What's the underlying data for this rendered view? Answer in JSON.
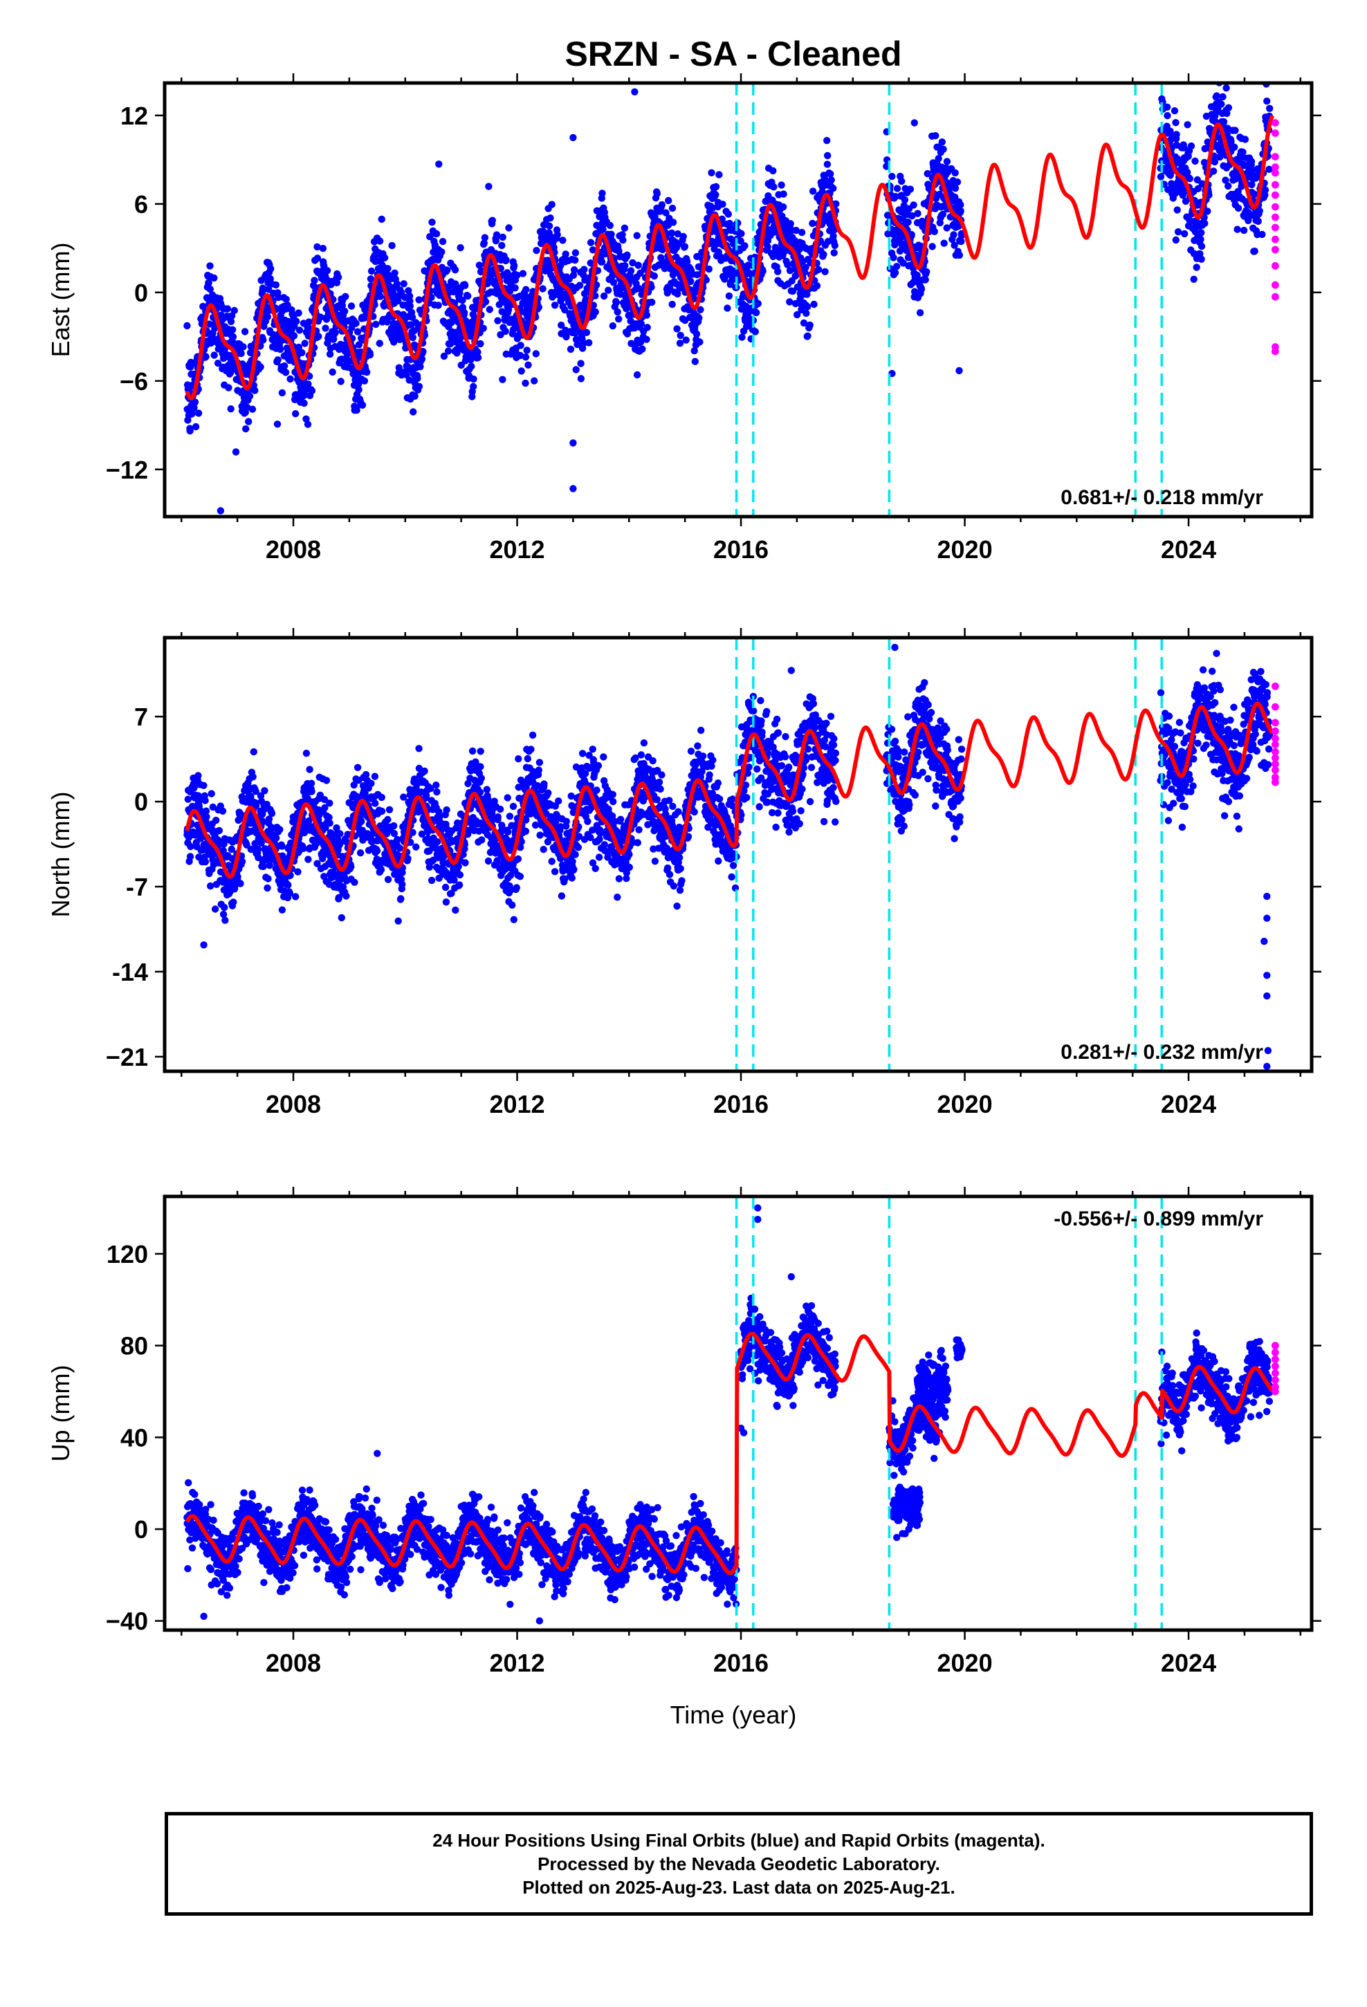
{
  "title": "SRZN  - SA - Cleaned",
  "xlabel": "Time (year)",
  "colors": {
    "final": "#0000ff",
    "rapid": "#ff00ff",
    "model": "#ff0000",
    "offset": "#00e5ee",
    "frame": "#000000"
  },
  "chart_data": [
    {
      "type": "scatter",
      "name": "east",
      "ylabel": "East (mm)",
      "xlim": [
        2005.7,
        2026.2
      ],
      "ylim": [
        -15.2,
        14.2
      ],
      "yticks": [
        12,
        6,
        0,
        -6,
        -12
      ],
      "ytick_labels": [
        "12",
        "6",
        "0",
        "−6",
        "−12"
      ],
      "xticks": [
        2008,
        2012,
        2016,
        2020,
        2024
      ],
      "xtick_labels": [
        "2008",
        "2012",
        "2016",
        "2020",
        "2024"
      ],
      "rate_label": "0.681+/- 0.218 mm/yr",
      "rate_pos": "bottom-right",
      "offsets": [
        2015.92,
        2016.22,
        2018.65,
        2023.05,
        2023.52
      ],
      "data_segments": [
        [
          2006.1,
          2017.7
        ],
        [
          2018.6,
          2019.95
        ],
        [
          2023.5,
          2025.45
        ]
      ],
      "trend": {
        "t0": 2006.1,
        "y0": -4.2,
        "rate": 0.681
      },
      "breaks": [
        [
          2015.92,
          0.0
        ],
        [
          2016.22,
          0.0
        ],
        [
          2018.65,
          0.0
        ],
        [
          2023.05,
          0.0
        ],
        [
          2023.52,
          0.0
        ]
      ],
      "annual": 2.5,
      "semiannual": 1.0,
      "phase": 0.35,
      "noise": 1.6,
      "rapid": {
        "t": 2025.55,
        "values": [
          11.5,
          10.8,
          9.2,
          8.5,
          7.3,
          6.6,
          5.8,
          5.1,
          4.4,
          3.6,
          2.9,
          1.8,
          0.5,
          -0.3,
          -3.7,
          -4.0,
          8.1
        ]
      },
      "outliers": [
        [
          2014.1,
          13.6
        ],
        [
          2013.0,
          10.5
        ],
        [
          2010.6,
          8.7
        ],
        [
          2019.1,
          11.5
        ],
        [
          2006.7,
          -14.8
        ],
        [
          2013.0,
          -13.3
        ],
        [
          2013.0,
          -10.2
        ],
        [
          2019.9,
          -5.3
        ],
        [
          2018.7,
          -5.5
        ]
      ]
    },
    {
      "type": "scatter",
      "name": "north",
      "ylabel": "North (mm)",
      "xlim": [
        2005.7,
        2026.2
      ],
      "ylim": [
        -22.2,
        13.5
      ],
      "yticks": [
        7,
        0,
        -7,
        -14,
        -21
      ],
      "ytick_labels": [
        "7",
        "0",
        "-7",
        "-14",
        "−21"
      ],
      "xticks": [
        2008,
        2012,
        2016,
        2020,
        2024
      ],
      "xtick_labels": [
        "2008",
        "2012",
        "2016",
        "2020",
        "2024"
      ],
      "rate_label": "0.281+/- 0.232 mm/yr",
      "rate_pos": "bottom-right",
      "offsets": [
        2015.92,
        2016.22,
        2018.65,
        2023.05,
        2023.52
      ],
      "data_segments": [
        [
          2006.1,
          2017.7
        ],
        [
          2018.6,
          2019.95
        ],
        [
          2023.5,
          2025.45
        ]
      ],
      "trend": {
        "t0": 2006.1,
        "y0": -3.6,
        "rate": 0.281
      },
      "breaks": [
        [
          2015.92,
          3.5
        ],
        [
          2016.22,
          0.0
        ],
        [
          2018.65,
          0.0
        ],
        [
          2023.05,
          0.0
        ],
        [
          2023.52,
          0.0
        ]
      ],
      "annual": 2.4,
      "semiannual": 0.8,
      "phase": 0.05,
      "noise": 1.7,
      "rapid": {
        "t": 2025.55,
        "values": [
          9.5,
          7.8,
          6.5,
          5.8,
          5.2,
          4.7,
          4.1,
          3.6,
          3.1,
          2.6,
          2.0,
          1.6
        ]
      },
      "outliers": [
        [
          2018.75,
          12.7
        ],
        [
          2024.5,
          12.2
        ],
        [
          2016.9,
          10.8
        ],
        [
          2006.4,
          -11.8
        ],
        [
          2025.4,
          -7.8
        ],
        [
          2025.4,
          -9.6
        ],
        [
          2025.35,
          -11.5
        ],
        [
          2025.4,
          -14.3
        ],
        [
          2025.4,
          -16.0
        ],
        [
          2025.42,
          -20.5
        ],
        [
          2025.4,
          -21.8
        ]
      ]
    },
    {
      "type": "scatter",
      "name": "up",
      "ylabel": "Up (mm)",
      "xlim": [
        2005.7,
        2026.2
      ],
      "ylim": [
        -44,
        145
      ],
      "yticks": [
        120,
        80,
        40,
        0,
        -40
      ],
      "ytick_labels": [
        "120",
        "80",
        "40",
        "0",
        "−40"
      ],
      "xticks": [
        2008,
        2012,
        2016,
        2020,
        2024
      ],
      "xtick_labels": [
        "2008",
        "2012",
        "2016",
        "2020",
        "2024"
      ],
      "rate_label": "-0.556+/- 0.899 mm/yr",
      "rate_pos": "top-right",
      "offsets": [
        2015.92,
        2016.22,
        2018.65,
        2023.05,
        2023.52
      ],
      "data_segments": [
        [
          2006.1,
          2015.92
        ],
        [
          2016.0,
          2017.7
        ],
        [
          2018.65,
          2019.5
        ],
        [
          2023.5,
          2025.45
        ]
      ],
      "trend": {
        "t0": 2006.1,
        "y0": -4.0,
        "rate": -0.556
      },
      "breaks": [
        [
          2015.92,
          85.0
        ],
        [
          2016.22,
          0.0
        ],
        [
          2018.65,
          -30.0
        ],
        [
          2023.05,
          8.0
        ],
        [
          2023.52,
          12.0
        ]
      ],
      "annual": 9.0,
      "semiannual": 2.0,
      "phase": 0.0,
      "noise": 6.0,
      "extra_clusters": [
        {
          "t0": 2018.72,
          "t1": 2019.2,
          "center": 10,
          "spread": 10
        },
        {
          "t0": 2019.15,
          "t1": 2019.7,
          "center": 62,
          "spread": 14
        },
        {
          "t0": 2019.85,
          "t1": 2019.95,
          "center": 78,
          "spread": 6
        }
      ],
      "rapid": {
        "t": 2025.55,
        "values": [
          80,
          77,
          74,
          71,
          68,
          65,
          62,
          60
        ]
      },
      "outliers": [
        [
          2016.3,
          140
        ],
        [
          2016.3,
          135
        ],
        [
          2016.0,
          44
        ],
        [
          2016.05,
          42
        ],
        [
          2016.9,
          110
        ],
        [
          2009.5,
          33
        ],
        [
          2006.4,
          -38
        ],
        [
          2012.4,
          -40
        ]
      ]
    }
  ],
  "footer": {
    "line1": "24 Hour Positions Using Final Orbits (blue) and Rapid Orbits (magenta).",
    "line2": "Processed by the Nevada Geodetic Laboratory.",
    "line3": "Plotted on 2025-Aug-23. Last data on 2025-Aug-21."
  }
}
